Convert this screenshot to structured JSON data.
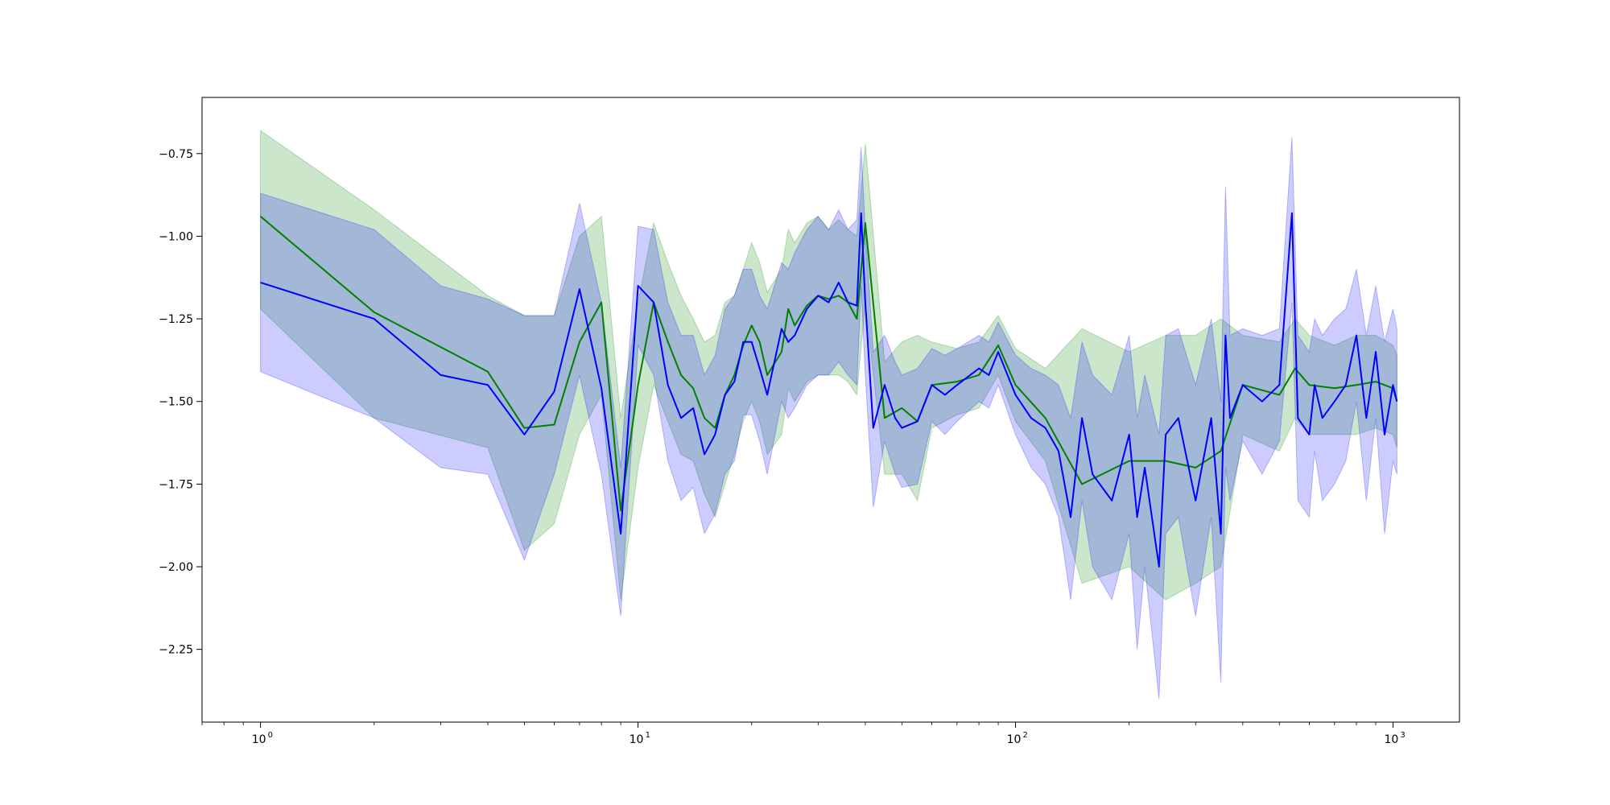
{
  "chart_data": {
    "type": "line",
    "title": "",
    "xlabel": "",
    "ylabel": "",
    "xscale": "log",
    "xlim": [
      0.7,
      1500
    ],
    "ylim": [
      -2.47,
      -0.58
    ],
    "grid": false,
    "legend": "none",
    "x_ticks": [
      {
        "value": 1,
        "base": "10",
        "exp": "0"
      },
      {
        "value": 10,
        "base": "10",
        "exp": "1"
      },
      {
        "value": 100,
        "base": "10",
        "exp": "2"
      },
      {
        "value": 1000,
        "base": "10",
        "exp": "3"
      }
    ],
    "y_ticks": [
      {
        "value": -0.75,
        "label": "−0.75"
      },
      {
        "value": -1.0,
        "label": "−1.00"
      },
      {
        "value": -1.25,
        "label": "−1.25"
      },
      {
        "value": -1.5,
        "label": "−1.50"
      },
      {
        "value": -1.75,
        "label": "−1.75"
      },
      {
        "value": -2.0,
        "label": "−2.00"
      },
      {
        "value": -2.25,
        "label": "−2.25"
      }
    ],
    "series": [
      {
        "color": "#008000",
        "band_color": "#008000",
        "band_opacity": 0.2,
        "x": [
          1,
          2,
          4,
          5,
          6,
          7,
          8,
          9,
          10,
          11,
          12,
          13,
          14,
          15,
          16,
          17,
          18,
          19,
          20,
          21,
          22,
          24,
          25,
          26,
          28,
          30,
          32,
          34,
          36,
          38,
          40,
          45,
          50,
          55,
          60,
          70,
          80,
          90,
          100,
          120,
          150,
          200,
          250,
          300,
          350,
          400,
          500,
          550,
          600,
          700,
          800,
          900,
          1000,
          1024
        ],
        "mean": [
          -0.94,
          -1.23,
          -1.41,
          -1.58,
          -1.57,
          -1.32,
          -1.2,
          -1.83,
          -1.45,
          -1.2,
          -1.32,
          -1.42,
          -1.46,
          -1.55,
          -1.58,
          -1.48,
          -1.42,
          -1.33,
          -1.27,
          -1.32,
          -1.42,
          -1.35,
          -1.22,
          -1.27,
          -1.21,
          -1.18,
          -1.19,
          -1.18,
          -1.2,
          -1.25,
          -0.96,
          -1.55,
          -1.52,
          -1.56,
          -1.45,
          -1.44,
          -1.42,
          -1.33,
          -1.45,
          -1.55,
          -1.75,
          -1.68,
          -1.68,
          -1.7,
          -1.65,
          -1.45,
          -1.48,
          -1.4,
          -1.45,
          -1.46,
          -1.45,
          -1.44,
          -1.46,
          -1.5
        ],
        "upper": [
          -0.68,
          -0.92,
          -1.18,
          -1.24,
          -1.24,
          -1.0,
          -0.94,
          -1.55,
          -1.2,
          -0.96,
          -1.08,
          -1.18,
          -1.25,
          -1.32,
          -1.3,
          -1.2,
          -1.18,
          -1.1,
          -1.02,
          -1.08,
          -1.17,
          -1.1,
          -0.98,
          -1.02,
          -0.96,
          -0.94,
          -0.98,
          -0.95,
          -0.98,
          -1.0,
          -0.72,
          -1.38,
          -1.32,
          -1.3,
          -1.32,
          -1.34,
          -1.32,
          -1.24,
          -1.34,
          -1.4,
          -1.28,
          -1.35,
          -1.3,
          -1.3,
          -1.25,
          -1.3,
          -1.32,
          -1.25,
          -1.3,
          -1.33,
          -1.3,
          -1.3,
          -1.33,
          -1.36
        ],
        "lower": [
          -1.22,
          -1.55,
          -1.64,
          -1.95,
          -1.87,
          -1.6,
          -1.48,
          -2.1,
          -1.7,
          -1.45,
          -1.56,
          -1.66,
          -1.68,
          -1.78,
          -1.85,
          -1.75,
          -1.66,
          -1.56,
          -1.5,
          -1.56,
          -1.66,
          -1.6,
          -1.46,
          -1.5,
          -1.44,
          -1.42,
          -1.42,
          -1.42,
          -1.44,
          -1.48,
          -1.2,
          -1.72,
          -1.72,
          -1.8,
          -1.58,
          -1.54,
          -1.52,
          -1.42,
          -1.56,
          -1.68,
          -2.05,
          -2.0,
          -2.1,
          -2.05,
          -2.0,
          -1.6,
          -1.65,
          -1.55,
          -1.6,
          -1.6,
          -1.6,
          -1.58,
          -1.6,
          -1.64
        ]
      },
      {
        "color": "#0000ff",
        "band_color": "#0000ff",
        "band_opacity": 0.2,
        "x": [
          1,
          2,
          3,
          4,
          5,
          6,
          7,
          8,
          9,
          10,
          11,
          12,
          13,
          14,
          15,
          16,
          17,
          18,
          19,
          20,
          21,
          22,
          24,
          25,
          26,
          28,
          30,
          32,
          34,
          36,
          38,
          39,
          40,
          42,
          45,
          48,
          50,
          55,
          60,
          65,
          70,
          80,
          85,
          90,
          100,
          110,
          120,
          130,
          140,
          150,
          160,
          180,
          200,
          210,
          220,
          240,
          250,
          270,
          300,
          330,
          350,
          360,
          370,
          400,
          450,
          500,
          540,
          560,
          600,
          620,
          650,
          700,
          750,
          800,
          850,
          900,
          950,
          1000,
          1024
        ],
        "mean": [
          -1.14,
          -1.25,
          -1.42,
          -1.45,
          -1.6,
          -1.47,
          -1.16,
          -1.46,
          -1.9,
          -1.15,
          -1.2,
          -1.45,
          -1.55,
          -1.52,
          -1.66,
          -1.6,
          -1.48,
          -1.44,
          -1.32,
          -1.32,
          -1.4,
          -1.48,
          -1.28,
          -1.32,
          -1.3,
          -1.22,
          -1.18,
          -1.2,
          -1.14,
          -1.2,
          -1.21,
          -0.93,
          -1.2,
          -1.58,
          -1.45,
          -1.55,
          -1.58,
          -1.56,
          -1.45,
          -1.48,
          -1.45,
          -1.4,
          -1.42,
          -1.35,
          -1.48,
          -1.55,
          -1.58,
          -1.65,
          -1.85,
          -1.55,
          -1.72,
          -1.8,
          -1.6,
          -1.85,
          -1.7,
          -2.0,
          -1.6,
          -1.55,
          -1.8,
          -1.55,
          -1.9,
          -1.3,
          -1.55,
          -1.45,
          -1.5,
          -1.45,
          -0.93,
          -1.55,
          -1.6,
          -1.45,
          -1.55,
          -1.5,
          -1.45,
          -1.3,
          -1.55,
          -1.35,
          -1.6,
          -1.45,
          -1.5
        ],
        "upper": [
          -0.87,
          -0.98,
          -1.15,
          -1.19,
          -1.24,
          -1.24,
          -0.9,
          -1.2,
          -1.7,
          -0.97,
          -0.98,
          -1.2,
          -1.3,
          -1.3,
          -1.42,
          -1.36,
          -1.22,
          -1.18,
          -1.1,
          -1.1,
          -1.18,
          -1.22,
          -1.08,
          -1.1,
          -1.05,
          -0.98,
          -0.94,
          -0.98,
          -0.92,
          -0.98,
          -0.95,
          -0.73,
          -0.98,
          -1.35,
          -1.3,
          -1.38,
          -1.42,
          -1.4,
          -1.34,
          -1.36,
          -1.34,
          -1.3,
          -1.32,
          -1.26,
          -1.36,
          -1.4,
          -1.42,
          -1.45,
          -1.55,
          -1.32,
          -1.42,
          -1.48,
          -1.3,
          -1.55,
          -1.42,
          -1.6,
          -1.3,
          -1.28,
          -1.45,
          -1.25,
          -1.5,
          -0.85,
          -1.3,
          -1.28,
          -1.3,
          -1.28,
          -0.7,
          -1.3,
          -1.35,
          -1.25,
          -1.3,
          -1.25,
          -1.22,
          -1.1,
          -1.3,
          -1.15,
          -1.32,
          -1.22,
          -1.28
        ],
        "lower": [
          -1.41,
          -1.55,
          -1.7,
          -1.72,
          -1.98,
          -1.72,
          -1.42,
          -1.72,
          -2.15,
          -1.33,
          -1.42,
          -1.68,
          -1.8,
          -1.76,
          -1.9,
          -1.84,
          -1.72,
          -1.68,
          -1.54,
          -1.54,
          -1.62,
          -1.72,
          -1.5,
          -1.55,
          -1.52,
          -1.45,
          -1.42,
          -1.42,
          -1.38,
          -1.42,
          -1.45,
          -1.15,
          -1.42,
          -1.82,
          -1.62,
          -1.72,
          -1.76,
          -1.75,
          -1.56,
          -1.6,
          -1.56,
          -1.5,
          -1.52,
          -1.45,
          -1.6,
          -1.7,
          -1.75,
          -1.85,
          -2.1,
          -1.8,
          -2.0,
          -2.1,
          -1.9,
          -2.25,
          -2.0,
          -2.4,
          -1.9,
          -1.85,
          -2.15,
          -1.85,
          -2.35,
          -1.7,
          -1.8,
          -1.62,
          -1.72,
          -1.62,
          -1.2,
          -1.8,
          -1.85,
          -1.65,
          -1.8,
          -1.75,
          -1.68,
          -1.5,
          -1.8,
          -1.55,
          -1.9,
          -1.68,
          -1.72
        ]
      }
    ]
  }
}
